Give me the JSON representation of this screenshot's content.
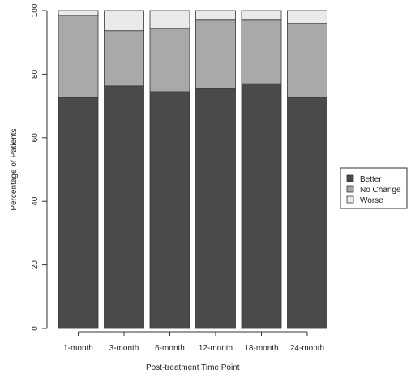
{
  "chart_data": {
    "type": "bar",
    "stacked": true,
    "categories": [
      "1-month",
      "3-month",
      "6-month",
      "12-month",
      "18-month",
      "24-month"
    ],
    "series": [
      {
        "name": "Better",
        "color": "#4a4a4a",
        "values": [
          72.7,
          76.3,
          74.5,
          75.5,
          77.0,
          72.7
        ]
      },
      {
        "name": "No Change",
        "color": "#a9a9a9",
        "values": [
          25.8,
          17.4,
          19.9,
          21.5,
          20.0,
          23.3
        ]
      },
      {
        "name": "Worse",
        "color": "#eaeaea",
        "values": [
          1.5,
          6.3,
          5.6,
          3.0,
          3.0,
          4.0
        ]
      }
    ],
    "xlabel": "Post-treatment Time Point",
    "ylabel": "Percentage of Patients",
    "ylim": [
      0,
      100
    ],
    "yticks": [
      0,
      20,
      40,
      60,
      80,
      100
    ],
    "legend_position": "right",
    "grid": false
  }
}
